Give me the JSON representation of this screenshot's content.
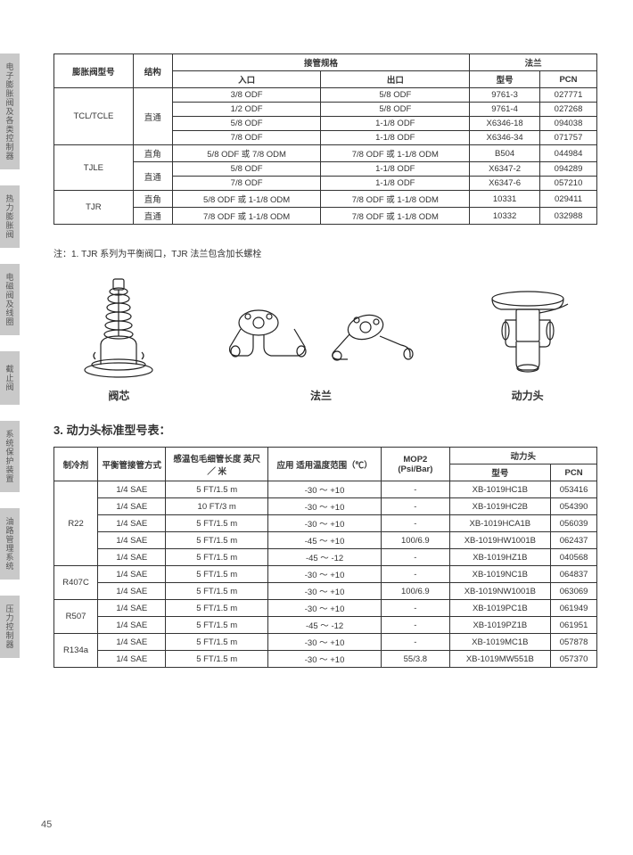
{
  "sideTabs": [
    "电子膨胀阀及各类控制器",
    "热力膨胀阀",
    "电磁阀及线圈",
    "截止阀",
    "系统保护装置",
    "油路管理系统",
    "压力控制器"
  ],
  "table1": {
    "headers": {
      "col1": "膨胀阀型号",
      "col2": "结构",
      "group1": "接管规格",
      "group1a": "入口",
      "group1b": "出口",
      "group2": "法兰",
      "group2a": "型号",
      "group2b": "PCN"
    },
    "rows": [
      {
        "model": "TCL/TCLE",
        "modelSpan": 4,
        "struct": "直通",
        "structSpan": 4,
        "in": "3/8 ODF",
        "out": "5/8 ODF",
        "fl": "9761-3",
        "pcn": "027771"
      },
      {
        "in": "1/2 ODF",
        "out": "5/8 ODF",
        "fl": "9761-4",
        "pcn": "027268"
      },
      {
        "in": "5/8 ODF",
        "out": "1-1/8 ODF",
        "fl": "X6346-18",
        "pcn": "094038"
      },
      {
        "in": "7/8 ODF",
        "out": "1-1/8 ODF",
        "fl": "X6346-34",
        "pcn": "071757"
      },
      {
        "model": "TJLE",
        "modelSpan": 3,
        "struct": "直角",
        "structSpan": 1,
        "in": "5/8 ODF 或 7/8 ODM",
        "out": "7/8 ODF 或 1-1/8 ODM",
        "fl": "B504",
        "pcn": "044984"
      },
      {
        "struct": "直通",
        "structSpan": 2,
        "in": "5/8 ODF",
        "out": "1-1/8 ODF",
        "fl": "X6347-2",
        "pcn": "094289"
      },
      {
        "in": "7/8 ODF",
        "out": "1-1/8 ODF",
        "fl": "X6347-6",
        "pcn": "057210"
      },
      {
        "model": "TJR",
        "modelSpan": 2,
        "struct": "直角",
        "structSpan": 1,
        "in": "5/8 ODF 或 1-1/8 ODM",
        "out": "7/8 ODF 或 1-1/8 ODM",
        "fl": "10331",
        "pcn": "029411"
      },
      {
        "struct": "直通",
        "structSpan": 1,
        "in": "7/8 ODF 或 1-1/8 ODM",
        "out": "7/8 ODF 或 1-1/8 ODM",
        "fl": "10332",
        "pcn": "032988"
      }
    ]
  },
  "note": "注：1. TJR 系列为平衡阀口，TJR 法兰包含加长螺栓",
  "figureLabels": {
    "a": "阀芯",
    "b": "法兰",
    "c": "动力头"
  },
  "sectionTitle": "3. 动力头标准型号表：",
  "table2": {
    "headers": {
      "col1": "制冷剂",
      "col2": "平衡管接管方式",
      "col3": "感温包毛细管长度 英尺 ／ 米",
      "col4": "应用 适用温度范围（℃）",
      "col5": "MOP2 (Psi/Bar)",
      "group1": "动力头",
      "group1a": "型号",
      "group1b": "PCN"
    },
    "rows": [
      {
        "ref": "R22",
        "refSpan": 5,
        "bal": "1/4 SAE",
        "cap": "5 FT/1.5 m",
        "temp": "-30 ～ +10",
        "mop": "-",
        "model": "XB-1019HC1B",
        "pcn": "053416"
      },
      {
        "bal": "1/4 SAE",
        "cap": "10 FT/3 m",
        "temp": "-30 ～ +10",
        "mop": "-",
        "model": "XB-1019HC2B",
        "pcn": "054390"
      },
      {
        "bal": "1/4 SAE",
        "cap": "5 FT/1.5 m",
        "temp": "-30 ～ +10",
        "mop": "-",
        "model": "XB-1019HCA1B",
        "pcn": "056039"
      },
      {
        "bal": "1/4 SAE",
        "cap": "5 FT/1.5 m",
        "temp": "-45 ～ +10",
        "mop": "100/6.9",
        "model": "XB-1019HW1001B",
        "pcn": "062437"
      },
      {
        "bal": "1/4 SAE",
        "cap": "5 FT/1.5 m",
        "temp": "-45 ～ -12",
        "mop": "-",
        "model": "XB-1019HZ1B",
        "pcn": "040568"
      },
      {
        "ref": "R407C",
        "refSpan": 2,
        "bal": "1/4 SAE",
        "cap": "5 FT/1.5 m",
        "temp": "-30 ～ +10",
        "mop": "-",
        "model": "XB-1019NC1B",
        "pcn": "064837"
      },
      {
        "bal": "1/4 SAE",
        "cap": "5 FT/1.5 m",
        "temp": "-30 ～ +10",
        "mop": "100/6.9",
        "model": "XB-1019NW1001B",
        "pcn": "063069"
      },
      {
        "ref": "R507",
        "refSpan": 2,
        "bal": "1/4 SAE",
        "cap": "5 FT/1.5 m",
        "temp": "-30 ～ +10",
        "mop": "-",
        "model": "XB-1019PC1B",
        "pcn": "061949"
      },
      {
        "bal": "1/4 SAE",
        "cap": "5 FT/1.5 m",
        "temp": "-45 ～ -12",
        "mop": "-",
        "model": "XB-1019PZ1B",
        "pcn": "061951"
      },
      {
        "ref": "R134a",
        "refSpan": 2,
        "bal": "1/4 SAE",
        "cap": "5 FT/1.5 m",
        "temp": "-30 ～ +10",
        "mop": "-",
        "model": "XB-1019MC1B",
        "pcn": "057878"
      },
      {
        "bal": "1/4 SAE",
        "cap": "5 FT/1.5 m",
        "temp": "-30 ～ +10",
        "mop": "55/3.8",
        "model": "XB-1019MW551B",
        "pcn": "057370"
      }
    ]
  },
  "pageNum": "45"
}
